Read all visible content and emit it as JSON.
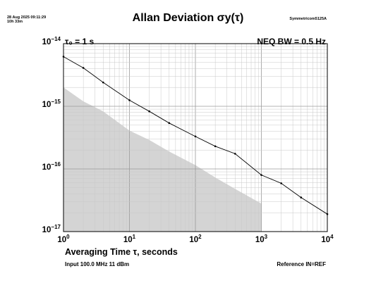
{
  "header": {
    "timestamp": "28 Aug 2025 09:11:29",
    "elapsed": "10h 33m",
    "instrument": "Symmetricom5125A",
    "tau0": "τ₀ = 1 s",
    "neq_bw": "NEQ BW = 0.5 Hz"
  },
  "footer": {
    "input": "Input 100.0 MHz 11 dBm",
    "reference": "Reference IN=REF"
  },
  "chart_data": {
    "type": "line",
    "title": "Allan Deviation σy(τ)",
    "xlabel": "Averaging Time τ, seconds",
    "ylabel": "",
    "x_scale": "log",
    "y_scale": "log",
    "xlim": [
      1,
      10000
    ],
    "ylim": [
      1e-17,
      1e-14
    ],
    "grid": true,
    "x_ticks": [
      {
        "value": 1,
        "base": "10",
        "exp": "0"
      },
      {
        "value": 10,
        "base": "10",
        "exp": "1"
      },
      {
        "value": 100,
        "base": "10",
        "exp": "2"
      },
      {
        "value": 1000,
        "base": "10",
        "exp": "3"
      },
      {
        "value": 10000,
        "base": "10",
        "exp": "4"
      }
    ],
    "y_ticks": [
      {
        "value": 1e-14,
        "base": "10",
        "exp": "−14"
      },
      {
        "value": 1e-15,
        "base": "10",
        "exp": "−15"
      },
      {
        "value": 1e-16,
        "base": "10",
        "exp": "−16"
      },
      {
        "value": 1e-17,
        "base": "10",
        "exp": "−17"
      }
    ],
    "series": [
      {
        "type": "line",
        "color": "#000000",
        "x": [
          1,
          2,
          4,
          10,
          20,
          40,
          100,
          200,
          400,
          1000,
          2000,
          4000,
          10000
        ],
        "y": [
          6.2e-15,
          4.1e-15,
          2.4e-15,
          1.25e-15,
          8.3e-16,
          5.4e-16,
          3.3e-16,
          2.3e-16,
          1.75e-16,
          8e-17,
          5.9e-17,
          3.5e-17,
          1.9e-17
        ]
      },
      {
        "type": "area",
        "color": "#d4d4d4",
        "x": [
          1,
          2,
          4,
          10,
          20,
          40,
          100,
          200,
          400,
          1000
        ],
        "y": [
          2e-15,
          1.2e-15,
          8.3e-16,
          4.1e-16,
          2.9e-16,
          1.9e-16,
          1.15e-16,
          7.3e-17,
          4.8e-17,
          2.8e-17
        ]
      }
    ]
  }
}
